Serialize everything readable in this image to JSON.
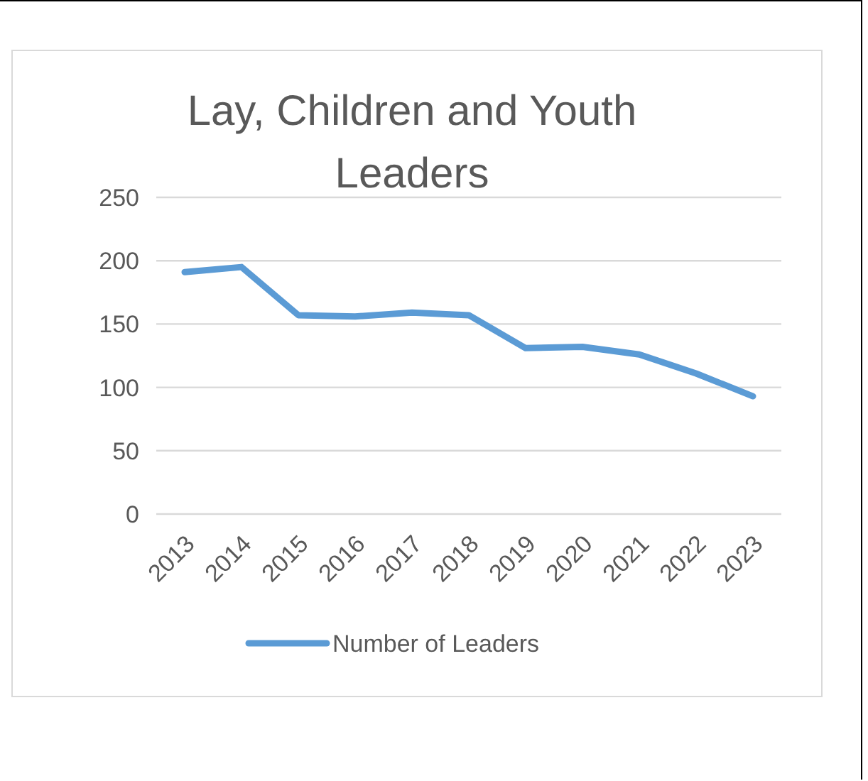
{
  "chart_data": {
    "type": "line",
    "title": "Lay, Children and Youth Leaders",
    "categories": [
      "2013",
      "2014",
      "2015",
      "2016",
      "2017",
      "2018",
      "2019",
      "2020",
      "2021",
      "2022",
      "2023"
    ],
    "series": [
      {
        "name": "Number of Leaders",
        "color": "#5b9bd5",
        "values": [
          191,
          195,
          157,
          156,
          159,
          157,
          131,
          132,
          126,
          111,
          93
        ]
      }
    ],
    "ylim": [
      0,
      250
    ],
    "yticks": [
      0,
      50,
      100,
      150,
      200,
      250
    ],
    "grid": "y",
    "legend": "bottom",
    "marker": "none",
    "line_style": "solid"
  }
}
